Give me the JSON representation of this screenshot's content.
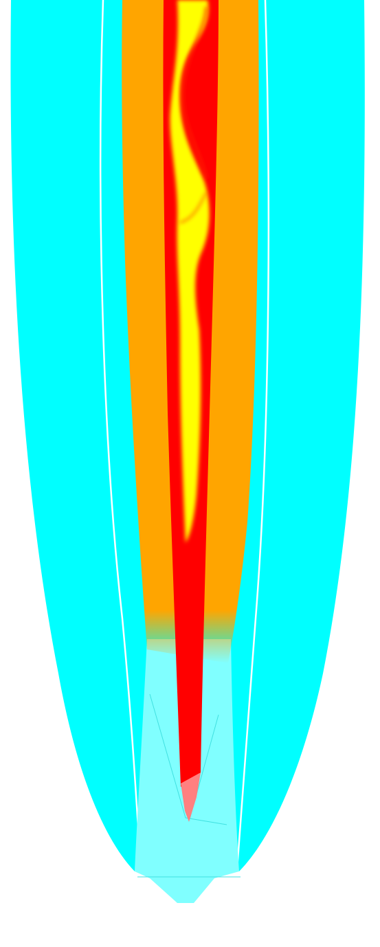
{
  "figure": {
    "kind": "colored flame / plume simulation visualization",
    "text": "",
    "colors": {
      "background": "#ffffff",
      "outer_sheath": "#00ffff",
      "pale_cyan": "#80ffff",
      "orange_band": "#ffa500",
      "red_core": "#ff0000",
      "yellow_core": "#ffff00",
      "tip_pink": "#ff8080",
      "edge_line": "#ffffff"
    },
    "regions": [
      {
        "name": "outer-cyan-sheath"
      },
      {
        "name": "inner-cyan-sheath"
      },
      {
        "name": "pale-cyan-nozzle"
      },
      {
        "name": "orange-band"
      },
      {
        "name": "red-core"
      },
      {
        "name": "yellow-core"
      },
      {
        "name": "pink-tip"
      }
    ]
  }
}
